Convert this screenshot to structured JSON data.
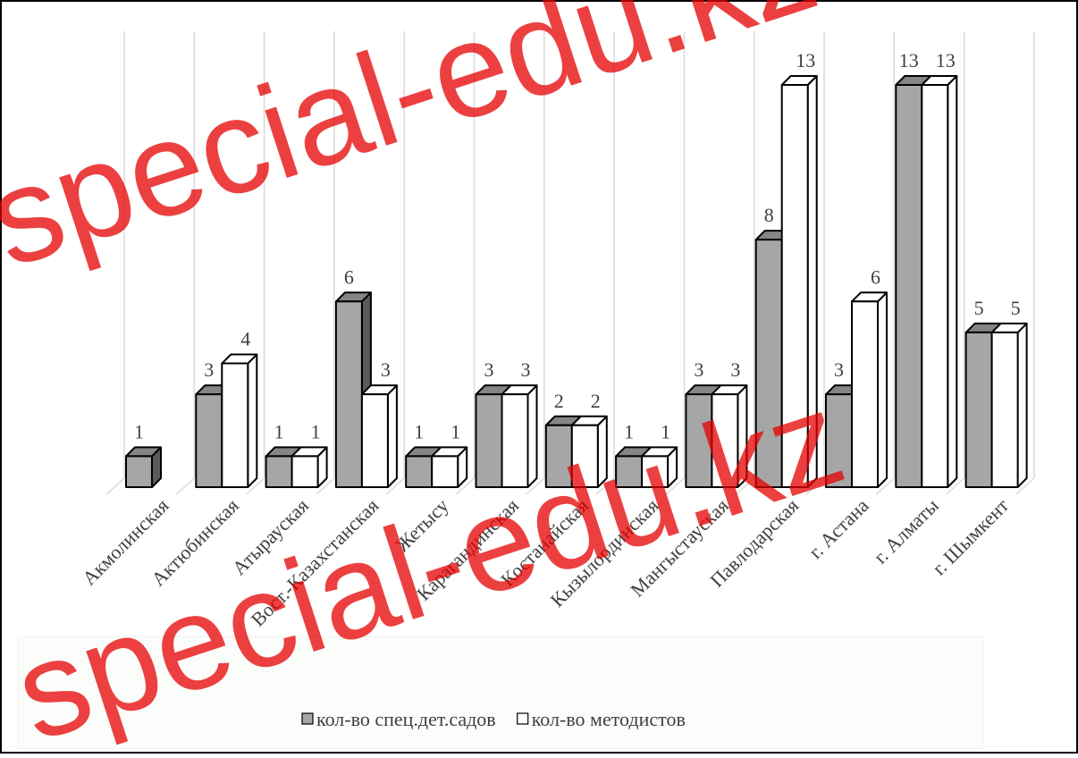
{
  "chart_data": {
    "type": "bar3d",
    "categories": [
      "Акмолинская",
      "Актюбинская",
      "Атырауская",
      "Вост.-Казахстанская",
      "Жетысу",
      "Карагандинская",
      "Костанайская",
      "Кызылординская",
      "Мангыстауская",
      "Павлодарская",
      "г. Астана",
      "г. Алматы",
      "г. Шымкент"
    ],
    "series": [
      {
        "name": "кол-во спец.дет.садов",
        "color": "#a6a6a6",
        "values": [
          1,
          3,
          1,
          6,
          1,
          3,
          2,
          1,
          3,
          8,
          3,
          13,
          5
        ]
      },
      {
        "name": "кол-во методистов",
        "color": "#ffffff",
        "values": [
          null,
          4,
          1,
          3,
          1,
          3,
          2,
          1,
          3,
          13,
          6,
          13,
          5
        ]
      }
    ],
    "grid": true,
    "legend": "bottom",
    "watermark": "special-edu.kz"
  }
}
